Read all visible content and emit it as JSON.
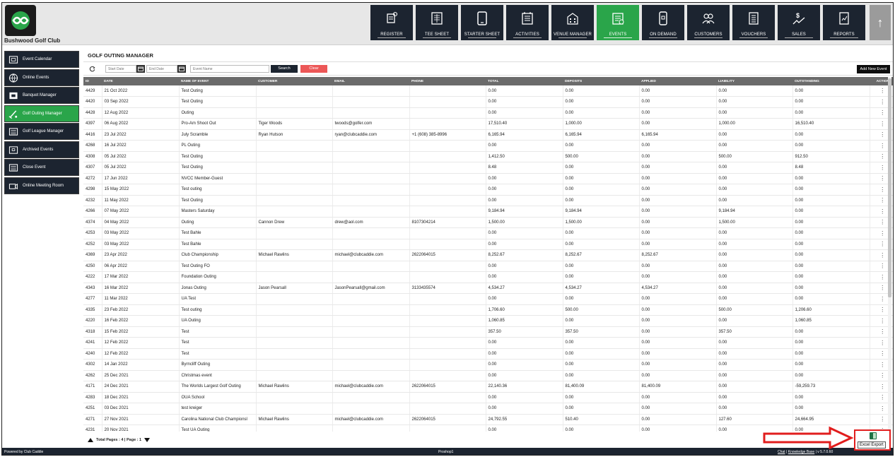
{
  "header": {
    "club_name": "Bushwood Golf Club",
    "nav": [
      {
        "label": "REGISTER",
        "icon": "register-icon",
        "active": false
      },
      {
        "label": "TEE SHEET",
        "icon": "tee-sheet-icon",
        "active": false
      },
      {
        "label": "STARTER SHEET",
        "icon": "tablet-icon",
        "active": false
      },
      {
        "label": "ACTIVITIES",
        "icon": "activities-icon",
        "active": false
      },
      {
        "label": "VENUE MANAGER",
        "icon": "venue-icon",
        "active": false
      },
      {
        "label": "EVENTS",
        "icon": "events-icon",
        "active": true
      },
      {
        "label": "ON DEMAND",
        "icon": "phone-icon",
        "active": false
      },
      {
        "label": "CUSTOMERS",
        "icon": "customers-icon",
        "active": false
      },
      {
        "label": "VOUCHERS",
        "icon": "vouchers-icon",
        "active": false
      },
      {
        "label": "SALES",
        "icon": "sales-icon",
        "active": false
      },
      {
        "label": "REPORTS",
        "icon": "reports-icon",
        "active": false
      }
    ],
    "up_arrow": "↑"
  },
  "sidebar": {
    "items": [
      {
        "label": "Event Calendar",
        "active": false
      },
      {
        "label": "Online Events",
        "active": false
      },
      {
        "label": "Banquet Manager",
        "active": false
      },
      {
        "label": "Golf Outing Manager",
        "active": true
      },
      {
        "label": "Golf League Manager",
        "active": false
      },
      {
        "label": "Archived Events",
        "active": false
      },
      {
        "label": "Close Event",
        "active": false
      },
      {
        "label": "Online Meeting Room",
        "active": false
      }
    ]
  },
  "main": {
    "title": "GOLF OUTING MANAGER",
    "toolbar": {
      "start_date_placeholder": "Start Date",
      "end_date_placeholder": "End Date",
      "event_name_placeholder": "Event Name",
      "search_label": "Search",
      "clear_label": "Clear",
      "add_label": "Add New Event"
    },
    "columns": [
      "ID",
      "DATE",
      "NAME OF EVENT",
      "CUSTOMER",
      "EMAIL",
      "PHONE",
      "TOTAL",
      "DEPOSITS",
      "APPLIED",
      "LIABILITY",
      "OUTSTANDING",
      "ACTION"
    ],
    "rows": [
      [
        "4429",
        "21 Oct 2022",
        "Test Outing",
        "",
        "",
        "",
        "0.00",
        "0.00",
        "0.00",
        "0.00",
        "0.00"
      ],
      [
        "4420",
        "03 Sep 2022",
        "Test Outing",
        "",
        "",
        "",
        "0.00",
        "0.00",
        "0.00",
        "0.00",
        "0.00"
      ],
      [
        "4428",
        "12 Aug 2022",
        "Outing",
        "",
        "",
        "",
        "0.00",
        "0.00",
        "0.00",
        "0.00",
        "0.00"
      ],
      [
        "4397",
        "06 Aug 2022",
        "Pro-Am Shoot Out",
        "Tiger Woods",
        "twoods@golfer.com",
        "",
        "17,510.40",
        "1,000.00",
        "0.00",
        "1,000.00",
        "16,510.40"
      ],
      [
        "4416",
        "23 Jul 2022",
        "July Scramble",
        "Ryan Hutson",
        "ryan@clubcaddie.com",
        "+1 (608) 385-8996",
        "6,165.94",
        "6,165.94",
        "6,165.94",
        "0.00",
        "0.00"
      ],
      [
        "4268",
        "16 Jul 2022",
        "PL Outing",
        "",
        "",
        "",
        "0.00",
        "0.00",
        "0.00",
        "0.00",
        "0.00"
      ],
      [
        "4308",
        "05 Jul 2022",
        "Test Outing",
        "",
        "",
        "",
        "1,412.50",
        "500.00",
        "0.00",
        "500.00",
        "912.50"
      ],
      [
        "4307",
        "05 Jul 2022",
        "Test Outing",
        "",
        "",
        "",
        "8.48",
        "0.00",
        "0.00",
        "0.00",
        "8.48"
      ],
      [
        "4272",
        "17 Jun 2022",
        "NVCC Member-Guest",
        "",
        "",
        "",
        "0.00",
        "0.00",
        "0.00",
        "0.00",
        "0.00"
      ],
      [
        "4298",
        "15 May 2022",
        "Test outing",
        "",
        "",
        "",
        "0.00",
        "0.00",
        "0.00",
        "0.00",
        "0.00"
      ],
      [
        "4232",
        "11 May 2022",
        "Test Outing",
        "",
        "",
        "",
        "0.00",
        "0.00",
        "0.00",
        "0.00",
        "0.00"
      ],
      [
        "4266",
        "07 May 2022",
        "Masters Saturday",
        "",
        "",
        "",
        "9,184.94",
        "9,184.94",
        "0.00",
        "9,184.94",
        "0.00"
      ],
      [
        "4374",
        "04 May 2022",
        "Outing",
        "Cannon Drew",
        "drew@aol.com",
        "8107304214",
        "1,500.00",
        "1,500.00",
        "0.00",
        "1,500.00",
        "0.00"
      ],
      [
        "4253",
        "03 May 2022",
        "Test Bahle",
        "",
        "",
        "",
        "0.00",
        "0.00",
        "0.00",
        "0.00",
        "0.00"
      ],
      [
        "4252",
        "03 May 2022",
        "Test Bahle",
        "",
        "",
        "",
        "0.00",
        "0.00",
        "0.00",
        "0.00",
        "0.00"
      ],
      [
        "4369",
        "23 Apr 2022",
        "Club Championship",
        "Michael Rawlins",
        "michael@clubcaddie.com",
        "2622064015",
        "8,252.67",
        "8,252.67",
        "8,252.67",
        "0.00",
        "0.00"
      ],
      [
        "4250",
        "06 Apr 2022",
        "Test Outing FO",
        "",
        "",
        "",
        "0.00",
        "0.00",
        "0.00",
        "0.00",
        "0.00"
      ],
      [
        "4222",
        "17 Mar 2022",
        "Foundation Outing",
        "",
        "",
        "",
        "0.00",
        "0.00",
        "0.00",
        "0.00",
        "0.00"
      ],
      [
        "4343",
        "16 Mar 2022",
        "Jonas Outing",
        "Jason Pearsall",
        "JasonPearsall@gmail.com",
        "3133435574",
        "4,534.27",
        "4,534.27",
        "4,534.27",
        "0.00",
        "0.00"
      ],
      [
        "4277",
        "11 Mar 2022",
        "UA Test",
        "",
        "",
        "",
        "0.00",
        "0.00",
        "0.00",
        "0.00",
        "0.00"
      ],
      [
        "4335",
        "23 Feb 2022",
        "Test outing",
        "",
        "",
        "",
        "1,706.60",
        "500.00",
        "0.00",
        "500.00",
        "1,206.60"
      ],
      [
        "4220",
        "16 Feb 2022",
        "UA Outing",
        "",
        "",
        "",
        "1,060.85",
        "0.00",
        "0.00",
        "0.00",
        "1,060.85"
      ],
      [
        "4318",
        "15 Feb 2022",
        "Test",
        "",
        "",
        "",
        "357.50",
        "357.50",
        "0.00",
        "357.50",
        "0.00"
      ],
      [
        "4241",
        "12 Feb 2022",
        "Test",
        "",
        "",
        "",
        "0.00",
        "0.00",
        "0.00",
        "0.00",
        "0.00"
      ],
      [
        "4240",
        "12 Feb 2022",
        "Test",
        "",
        "",
        "",
        "0.00",
        "0.00",
        "0.00",
        "0.00",
        "0.00"
      ],
      [
        "4302",
        "14 Jan 2022",
        "Byrncliff Outing",
        "",
        "",
        "",
        "0.00",
        "0.00",
        "0.00",
        "0.00",
        "0.00"
      ],
      [
        "4262",
        "25 Dec 2021",
        "Christmas event",
        "",
        "",
        "",
        "0.00",
        "0.00",
        "0.00",
        "0.00",
        "0.00"
      ],
      [
        "4171",
        "24 Dec 2021",
        "The Worlds Largest Golf Outing",
        "Michael Rawlins",
        "michael@clubcaddie.com",
        "2622064015",
        "22,140.36",
        "81,400.09",
        "81,400.09",
        "0.00",
        "-59,259.73"
      ],
      [
        "4283",
        "18 Dec 2021",
        "OUA School",
        "",
        "",
        "",
        "0.00",
        "0.00",
        "0.00",
        "0.00",
        "0.00"
      ],
      [
        "4251",
        "03 Dec 2021",
        "test kreiger",
        "",
        "",
        "",
        "0.00",
        "0.00",
        "0.00",
        "0.00",
        "0.00"
      ],
      [
        "4271",
        "27 Nov 2021",
        "Carolina National Club Championsl",
        "Michael Rawlins",
        "michael@clubcaddie.com",
        "2622064015",
        "24,792.55",
        "510.40",
        "0.00",
        "127.60",
        "24,664.95"
      ],
      [
        "4231",
        "20 Nov 2021",
        "Test UA Outing",
        "",
        "",
        "",
        "0.00",
        "0.00",
        "0.00",
        "0.00",
        "0.00"
      ]
    ],
    "action_glyph": "⋮",
    "pager": "Total Pages : 4 | Page : 1"
  },
  "footer": {
    "left": "Powered by Club Caddie",
    "middle": "Proshop1",
    "chat": "Chat",
    "separator": "|",
    "knowledge": "Knowledge Base",
    "version": "v 5.7.0.60"
  },
  "annotation": {
    "excel_label": "Excel Export",
    "arrow_color": "#e11d1d"
  }
}
